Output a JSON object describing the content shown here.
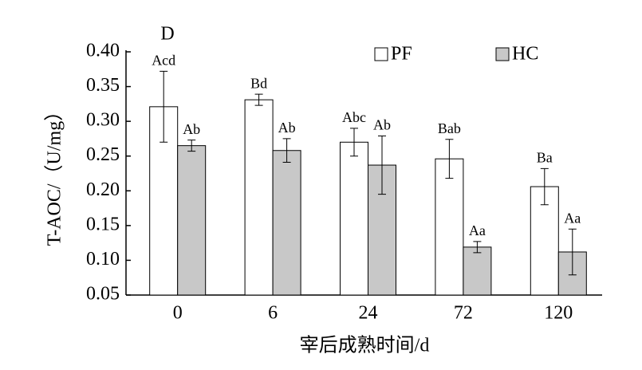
{
  "chart_data": {
    "type": "bar",
    "panel_label": "D",
    "y_label": "T-AOC/（U/mg）",
    "x_label": "宰后成熟时间/d",
    "categories": [
      "0",
      "6",
      "24",
      "72",
      "120"
    ],
    "series": [
      {
        "name": "PF",
        "color": "#ffffff",
        "values": [
          0.321,
          0.331,
          0.27,
          0.246,
          0.206
        ],
        "errors": [
          0.051,
          0.008,
          0.02,
          0.028,
          0.026
        ],
        "letters": [
          "Acd",
          "Bd",
          "Abc",
          "Bab",
          "Ba"
        ]
      },
      {
        "name": "HC",
        "color": "#c8c8c8",
        "values": [
          0.265,
          0.258,
          0.237,
          0.119,
          0.112
        ],
        "errors": [
          0.008,
          0.017,
          0.042,
          0.008,
          0.033
        ],
        "letters": [
          "Ab",
          "Ab",
          "Ab",
          "Aa",
          "Aa"
        ]
      }
    ],
    "ylim": [
      0.05,
      0.4
    ],
    "yticks": [
      0.05,
      {
        "value": 0.1,
        "label": "0.10"
      },
      0.15,
      {
        "value": 0.2,
        "label": "0.20"
      },
      0.25,
      {
        "value": 0.3,
        "label": "0.30"
      },
      0.35,
      {
        "value": 0.4,
        "label": "0.40"
      }
    ],
    "legend": "top-right"
  }
}
